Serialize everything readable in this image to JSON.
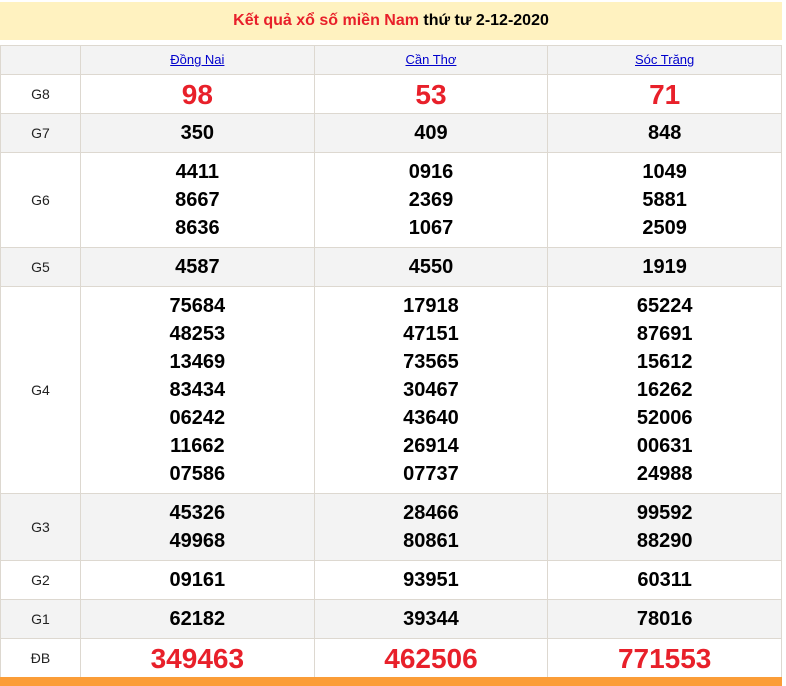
{
  "title": {
    "prefix": "Kết quả xổ số miền Nam",
    "suffix": "thứ tư 2-12-2020"
  },
  "provinces": [
    "Đồng Nai",
    "Cần Thơ",
    "Sóc Trăng"
  ],
  "prizes": [
    {
      "label": "G8",
      "big": true,
      "values": [
        [
          "98"
        ],
        [
          "53"
        ],
        [
          "71"
        ]
      ]
    },
    {
      "label": "G7",
      "values": [
        [
          "350"
        ],
        [
          "409"
        ],
        [
          "848"
        ]
      ]
    },
    {
      "label": "G6",
      "values": [
        [
          "4411",
          "8667",
          "8636"
        ],
        [
          "0916",
          "2369",
          "1067"
        ],
        [
          "1049",
          "5881",
          "2509"
        ]
      ]
    },
    {
      "label": "G5",
      "values": [
        [
          "4587"
        ],
        [
          "4550"
        ],
        [
          "1919"
        ]
      ]
    },
    {
      "label": "G4",
      "values": [
        [
          "75684",
          "48253",
          "13469",
          "83434",
          "06242",
          "11662",
          "07586"
        ],
        [
          "17918",
          "47151",
          "73565",
          "30467",
          "43640",
          "26914",
          "07737"
        ],
        [
          "65224",
          "87691",
          "15612",
          "16262",
          "52006",
          "00631",
          "24988"
        ]
      ]
    },
    {
      "label": "G3",
      "values": [
        [
          "45326",
          "49968"
        ],
        [
          "28466",
          "80861"
        ],
        [
          "99592",
          "88290"
        ]
      ]
    },
    {
      "label": "G2",
      "values": [
        [
          "09161"
        ],
        [
          "93951"
        ],
        [
          "60311"
        ]
      ]
    },
    {
      "label": "G1",
      "values": [
        [
          "62182"
        ],
        [
          "39344"
        ],
        [
          "78016"
        ]
      ]
    },
    {
      "label": "ĐB",
      "big": true,
      "values": [
        [
          "349463"
        ],
        [
          "462506"
        ],
        [
          "771553"
        ]
      ]
    }
  ],
  "colors": {
    "accent": "#e8202a",
    "title_bg": "#fff2c0",
    "footer_bar": "#fb9d38",
    "link": "#0000cc"
  }
}
